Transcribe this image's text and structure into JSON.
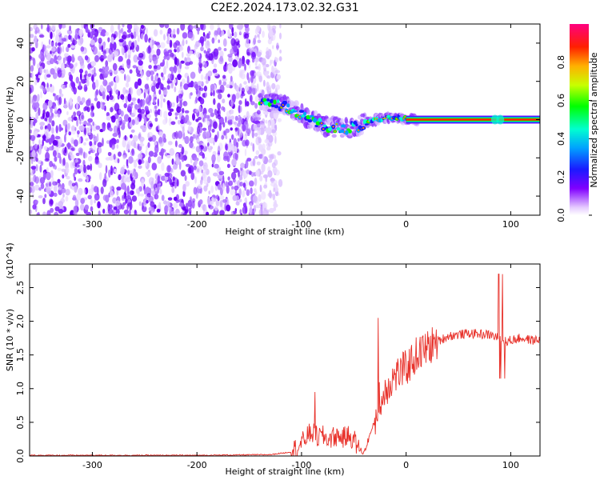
{
  "title": "C2E2.2024.173.02.32.G31",
  "colors": {
    "signal_band": "#e8002a",
    "snr_line": "#e8312a",
    "noise": "#8a2be2"
  },
  "chart_data": [
    {
      "type": "heatmap",
      "xlabel": "Height of straight line (km)",
      "ylabel": "Frequency (Hz)",
      "xlim": [
        -360,
        128
      ],
      "ylim": [
        -50,
        50
      ],
      "xticks": [
        -300,
        -200,
        -100,
        0,
        100
      ],
      "xtick_labels": [
        "-300",
        "-200",
        "-100",
        "0",
        "100"
      ],
      "yticks": [
        -40,
        -20,
        0,
        20,
        40
      ],
      "ytick_labels": [
        "-40",
        "-20",
        "0",
        "20",
        "40"
      ],
      "noise_region_x": [
        -360,
        -120
      ],
      "signal_trace": {
        "x": [
          -140,
          -120,
          -100,
          -80,
          -60,
          -50,
          -40,
          -30,
          -20,
          -10,
          0,
          10,
          40,
          80,
          90,
          100,
          128
        ],
        "y": [
          10,
          8,
          3,
          -3,
          -5,
          -4,
          -2,
          0,
          1,
          1,
          0.5,
          0,
          0,
          0,
          0,
          0,
          0
        ]
      },
      "colorbar": {
        "label": "Normalized spectral amplitude",
        "range": [
          0,
          1
        ],
        "ticks": [
          0.0,
          0.2,
          0.4,
          0.6,
          0.8
        ],
        "tick_labels": [
          "0.0",
          "0.2",
          "0.4",
          "0.6",
          "0.8"
        ]
      },
      "grid": false
    },
    {
      "type": "line",
      "xlabel": "Height of straight line (km)",
      "ylabel": "SNR (10 * v/v)",
      "scale_label": "(x10^4)",
      "xlim": [
        -360,
        128
      ],
      "ylim": [
        0,
        2.85
      ],
      "xticks": [
        -300,
        -200,
        -100,
        0,
        100
      ],
      "xtick_labels": [
        "-300",
        "-200",
        "-100",
        "0",
        "100"
      ],
      "yticks": [
        0.0,
        0.5,
        1.0,
        1.5,
        2.0,
        2.5
      ],
      "ytick_labels": [
        "0.0",
        "0.5",
        "1.0",
        "1.5",
        "2.0",
        "2.5"
      ],
      "series": [
        {
          "x": [
            -360,
            -300,
            -200,
            -130,
            -110,
            -100,
            -95,
            -90,
            -85,
            -80,
            -75,
            -70,
            -65,
            -60,
            -55,
            -50,
            -45,
            -40,
            -35,
            -30,
            -27,
            -25,
            -23,
            -20,
            -15,
            -10,
            -5,
            0,
            5,
            10,
            20,
            30,
            40,
            60,
            80,
            90,
            95,
            100,
            110,
            120,
            128
          ],
          "y": [
            0.01,
            0.01,
            0.01,
            0.02,
            0.06,
            0.18,
            0.3,
            0.35,
            0.28,
            0.3,
            0.25,
            0.28,
            0.3,
            0.27,
            0.3,
            0.25,
            0.1,
            0.05,
            0.3,
            0.5,
            0.7,
            0.9,
            0.8,
            1.0,
            1.1,
            1.2,
            1.25,
            1.3,
            1.4,
            1.5,
            1.6,
            1.7,
            1.78,
            1.82,
            1.8,
            1.75,
            1.7,
            1.72,
            1.75,
            1.72,
            1.72
          ]
        }
      ],
      "grid": false
    }
  ]
}
